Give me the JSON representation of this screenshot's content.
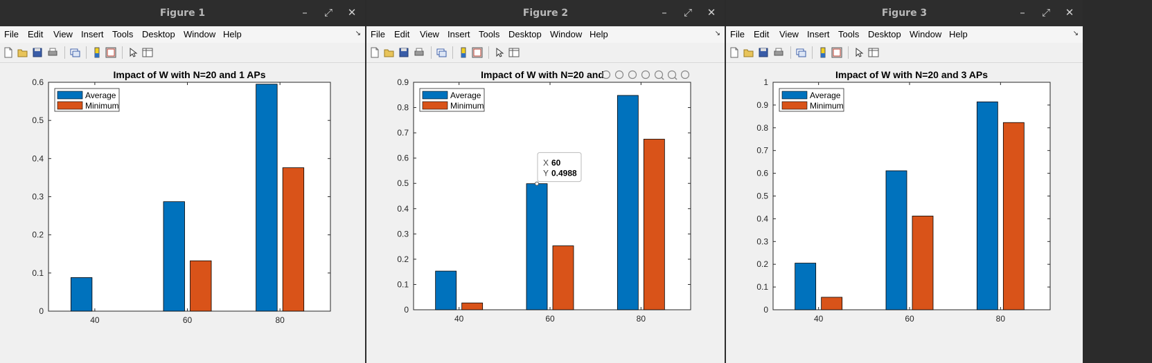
{
  "menu": [
    "File",
    "Edit",
    "View",
    "Insert",
    "Tools",
    "Desktop",
    "Window",
    "Help"
  ],
  "legend": [
    "Average",
    "Minimum"
  ],
  "colors": {
    "average": "#0072BD",
    "minimum": "#D95319"
  },
  "windows": [
    {
      "title": "Figure 1"
    },
    {
      "title": "Figure 2"
    },
    {
      "title": "Figure 3"
    }
  ],
  "datatip": {
    "x_label": "X",
    "x_value": "60",
    "y_label": "Y",
    "y_value": "0.4988"
  },
  "chart_data": [
    {
      "type": "bar",
      "title": "Impact of W with N=20 and 1 APs",
      "categories": [
        "40",
        "60",
        "80"
      ],
      "series": [
        {
          "name": "Average",
          "values": [
            0.088,
            0.287,
            0.595
          ]
        },
        {
          "name": "Minimum",
          "values": [
            0,
            0.132,
            0.376
          ]
        }
      ],
      "ylim": [
        0,
        0.6
      ],
      "yticks": [
        "0",
        "0.1",
        "0.2",
        "0.3",
        "0.4",
        "0.5",
        "0.6"
      ],
      "legend": "top-left"
    },
    {
      "type": "bar",
      "title": "Impact of W with N=20 and",
      "categories": [
        "40",
        "60",
        "80"
      ],
      "series": [
        {
          "name": "Average",
          "values": [
            0.153,
            0.4988,
            0.848
          ]
        },
        {
          "name": "Minimum",
          "values": [
            0.027,
            0.253,
            0.675
          ]
        }
      ],
      "ylim": [
        0,
        0.9
      ],
      "yticks": [
        "0",
        "0.1",
        "0.2",
        "0.3",
        "0.4",
        "0.5",
        "0.6",
        "0.7",
        "0.8",
        "0.9"
      ],
      "legend": "top-left"
    },
    {
      "type": "bar",
      "title": "Impact of W with N=20 and 3 APs",
      "categories": [
        "40",
        "60",
        "80"
      ],
      "series": [
        {
          "name": "Average",
          "values": [
            0.205,
            0.611,
            0.914
          ]
        },
        {
          "name": "Minimum",
          "values": [
            0.055,
            0.412,
            0.823
          ]
        }
      ],
      "ylim": [
        0,
        1
      ],
      "yticks": [
        "0",
        "0.1",
        "0.2",
        "0.3",
        "0.4",
        "0.5",
        "0.6",
        "0.7",
        "0.8",
        "0.9",
        "1"
      ],
      "legend": "top-left"
    }
  ]
}
